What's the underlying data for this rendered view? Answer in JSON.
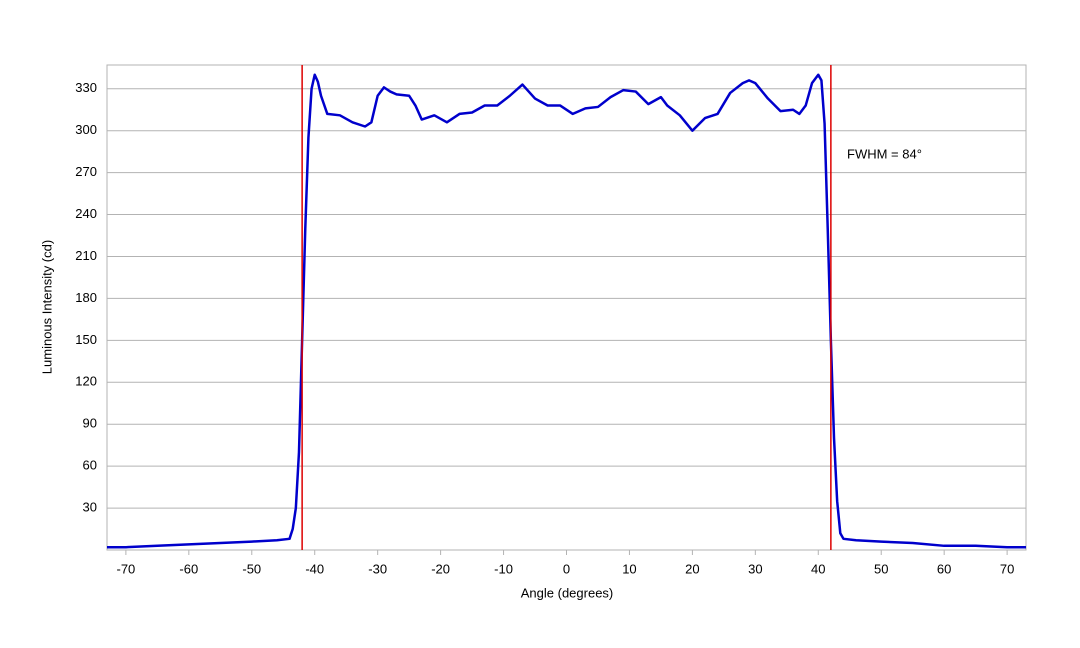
{
  "chart_data": {
    "type": "line",
    "xlabel": "Angle (degrees)",
    "ylabel": "Luminous Intensity (cd)",
    "x": [
      -73,
      -70,
      -65,
      -60,
      -55,
      -50,
      -46,
      -44,
      -43.5,
      -43,
      -42.5,
      -42,
      -41.5,
      -41,
      -40.5,
      -40,
      -39.5,
      -39,
      -38,
      -36,
      -34,
      -32,
      -31,
      -30,
      -29,
      -28,
      -27,
      -25,
      -24,
      -23,
      -21,
      -19,
      -17,
      -15,
      -13,
      -11,
      -9,
      -7,
      -6,
      -5,
      -3,
      -1,
      1,
      3,
      5,
      7,
      9,
      11,
      13,
      15,
      16,
      18,
      20,
      22,
      24,
      26,
      28,
      29,
      30,
      32,
      34,
      36,
      37,
      38,
      39,
      40,
      40.5,
      41,
      41.5,
      42,
      42.5,
      43,
      43.5,
      44,
      46,
      50,
      55,
      60,
      65,
      70,
      73
    ],
    "series": [
      {
        "color": "#0000cc",
        "values": [
          2,
          2,
          3,
          4,
          5,
          6,
          7,
          8,
          15,
          30,
          70,
          150,
          230,
          295,
          330,
          340,
          335,
          325,
          312,
          311,
          306,
          303,
          306,
          325,
          331,
          328,
          326,
          325,
          318,
          308,
          311,
          306,
          312,
          313,
          318,
          318,
          325,
          333,
          328,
          323,
          318,
          318,
          312,
          316,
          317,
          324,
          329,
          328,
          319,
          324,
          318,
          311,
          300,
          309,
          312,
          327,
          334,
          336,
          334,
          323,
          314,
          315,
          312,
          318,
          334,
          340,
          336,
          305,
          230,
          150,
          80,
          35,
          12,
          8,
          7,
          6,
          5,
          3,
          3,
          2,
          2
        ]
      }
    ],
    "vlines": [
      -42,
      42
    ],
    "vline_color": "#dd0000",
    "annotation": "FWHM = 84°",
    "xlim": [
      -73,
      73
    ],
    "ylim": [
      0,
      347
    ],
    "xticks": [
      -70,
      -60,
      -50,
      -40,
      -30,
      -20,
      -10,
      0,
      10,
      20,
      30,
      40,
      50,
      60,
      70
    ],
    "yticks": [
      30,
      60,
      90,
      120,
      150,
      180,
      210,
      240,
      270,
      300,
      330
    ],
    "grid": true
  }
}
